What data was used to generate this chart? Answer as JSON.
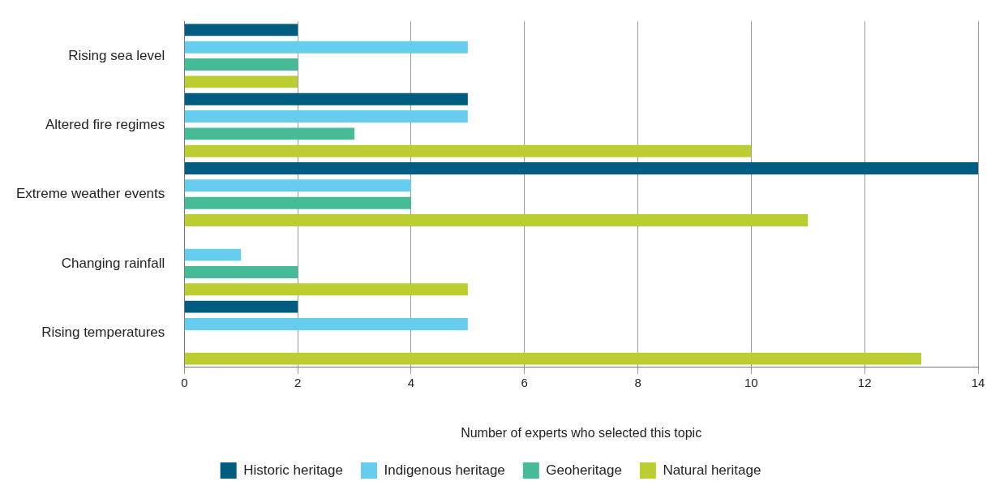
{
  "chart_data": {
    "type": "bar",
    "orientation": "horizontal",
    "xlabel": "Number of experts who selected this topic",
    "categories": [
      "Rising sea level",
      "Altered fire regimes",
      "Extreme weather events",
      "Changing rainfall",
      "Rising temperatures"
    ],
    "series": [
      {
        "name": "Historic heritage",
        "color": "#005c80",
        "values": [
          2,
          5,
          14,
          0,
          2
        ]
      },
      {
        "name": "Indigenous heritage",
        "color": "#66cdee",
        "values": [
          5,
          5,
          4,
          1,
          5
        ]
      },
      {
        "name": "Geoheritage",
        "color": "#45bc97",
        "values": [
          2,
          3,
          4,
          2,
          0
        ]
      },
      {
        "name": "Natural heritage",
        "color": "#bccd32",
        "values": [
          2,
          10,
          11,
          5,
          13
        ]
      }
    ],
    "xlim": [
      0,
      14
    ],
    "xticks": [
      0,
      2,
      4,
      6,
      8,
      10,
      12,
      14
    ],
    "grid": "x",
    "legend": "bottom"
  }
}
